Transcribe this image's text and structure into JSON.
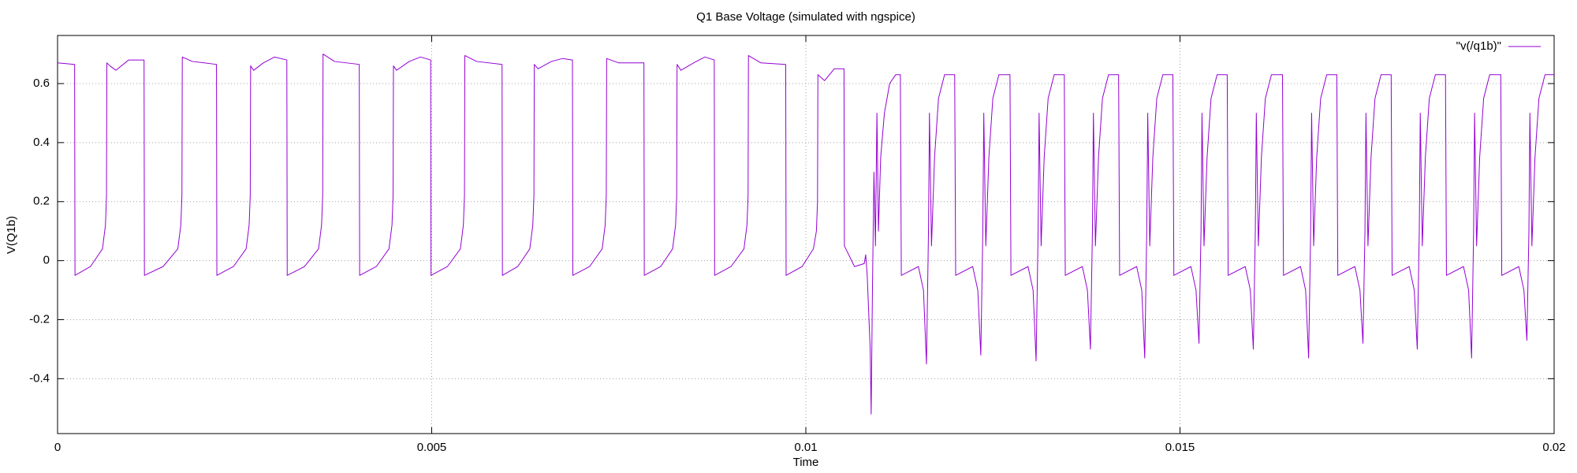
{
  "chart_data": {
    "type": "line",
    "title": "Q1 Base Voltage (simulated with ngspice)",
    "xlabel": "Time",
    "ylabel": "V(Q1b)",
    "xlim": [
      0,
      0.02
    ],
    "xticks": [
      0,
      0.005,
      0.01,
      0.015,
      0.02
    ],
    "ylim": [
      -0.586,
      0.763
    ],
    "yticks": [
      -0.4,
      -0.2,
      0,
      0.2,
      0.4,
      0.6
    ],
    "grid": true,
    "legend": "top right",
    "x": [
      0,
      0.000228,
      0.000233,
      0.00044,
      0.0006,
      0.00064,
      0.000654,
      0.000659,
      0.0007,
      0.00078,
      0.00095,
      0.001156,
      0.001161,
      0.00141,
      0.001607,
      0.001647,
      0.001662,
      0.001667,
      0.0018,
      0.002124,
      0.002129,
      0.00235,
      0.00252,
      0.00256,
      0.002575,
      0.00258,
      0.00262,
      0.00275,
      0.0029,
      0.003064,
      0.003069,
      0.0033,
      0.003488,
      0.003528,
      0.003543,
      0.003548,
      0.0037,
      0.004032,
      0.004037,
      0.00426,
      0.004429,
      0.004469,
      0.004484,
      0.004489,
      0.00453,
      0.0047,
      0.00485,
      0.004986,
      0.004991,
      0.00521,
      0.005383,
      0.005423,
      0.005438,
      0.005443,
      0.0056,
      0.00594,
      0.005945,
      0.00615,
      0.006311,
      0.006351,
      0.006366,
      0.006371,
      0.00642,
      0.0066,
      0.00675,
      0.006881,
      0.006886,
      0.00711,
      0.007278,
      0.007318,
      0.007333,
      0.007338,
      0.0075,
      0.007836,
      0.007841,
      0.00806,
      0.008219,
      0.008259,
      0.008274,
      0.008279,
      0.00833,
      0.0085,
      0.00865,
      0.008776,
      0.008781,
      0.009,
      0.009173,
      0.009213,
      0.009228,
      0.009233,
      0.0094,
      0.009731,
      0.009736,
      0.00995,
      0.010101,
      0.010141,
      0.010156,
      0.010161,
      0.01025,
      0.01038,
      0.01051,
      0.010515,
      0.01065,
      0.01078,
      0.0108,
      0.01082,
      0.01086,
      0.010873,
      0.01089,
      0.01091,
      0.01093,
      0.01095,
      0.01097,
      0.011,
      0.01105,
      0.01112,
      0.0112,
      0.011263,
      0.011276,
      0.011504,
      0.011572,
      0.011612,
      0.011639,
      0.011652,
      0.011679,
      0.01172,
      0.011773,
      0.011854,
      0.011989,
      0.012002,
      0.01223,
      0.012298,
      0.012338,
      0.012365,
      0.012378,
      0.012405,
      0.012446,
      0.012499,
      0.01258,
      0.012728,
      0.012741,
      0.012969,
      0.013037,
      0.013077,
      0.013104,
      0.013117,
      0.013144,
      0.013185,
      0.013238,
      0.013319,
      0.013454,
      0.013467,
      0.013695,
      0.013763,
      0.013803,
      0.01383,
      0.013843,
      0.01387,
      0.013911,
      0.013964,
      0.014045,
      0.01418,
      0.014193,
      0.014421,
      0.014489,
      0.014529,
      0.014556,
      0.014569,
      0.014596,
      0.014637,
      0.01469,
      0.014771,
      0.014905,
      0.014918,
      0.015146,
      0.015214,
      0.015254,
      0.015281,
      0.015294,
      0.015321,
      0.015362,
      0.015415,
      0.015496,
      0.015631,
      0.015644,
      0.015872,
      0.01594,
      0.01598,
      0.016007,
      0.01602,
      0.016047,
      0.016088,
      0.016141,
      0.016222,
      0.01637,
      0.016383,
      0.016611,
      0.016679,
      0.016719,
      0.016746,
      0.016759,
      0.016786,
      0.016827,
      0.01688,
      0.016961,
      0.017096,
      0.017109,
      0.017337,
      0.017405,
      0.017445,
      0.017472,
      0.017485,
      0.017512,
      0.017553,
      0.017606,
      0.017687,
      0.017822,
      0.017835,
      0.018063,
      0.018131,
      0.018171,
      0.018198,
      0.018211,
      0.018238,
      0.018279,
      0.018332,
      0.018413,
      0.018548,
      0.018561,
      0.018789,
      0.018857,
      0.018897,
      0.018924,
      0.018937,
      0.018964,
      0.019005,
      0.019058,
      0.019139,
      0.019287,
      0.0193,
      0.019528,
      0.019596,
      0.019636,
      0.019663,
      0.019676,
      0.019703,
      0.019744,
      0.019797,
      0.019878,
      0.02
    ],
    "series": [
      {
        "name": "\"v(/q1b)\"",
        "color": "#9400d3",
        "values": [
          0.67,
          0.665,
          -0.05,
          -0.02,
          0.04,
          0.12,
          0.22,
          0.67,
          0.66,
          0.645,
          0.68,
          0.68,
          -0.05,
          -0.02,
          0.04,
          0.12,
          0.22,
          0.69,
          0.675,
          0.665,
          -0.05,
          -0.02,
          0.04,
          0.12,
          0.22,
          0.66,
          0.645,
          0.67,
          0.69,
          0.68,
          -0.05,
          -0.02,
          0.04,
          0.12,
          0.22,
          0.7,
          0.675,
          0.665,
          -0.05,
          -0.02,
          0.04,
          0.12,
          0.22,
          0.66,
          0.645,
          0.675,
          0.69,
          0.68,
          -0.05,
          -0.02,
          0.04,
          0.12,
          0.22,
          0.695,
          0.675,
          0.665,
          -0.05,
          -0.02,
          0.04,
          0.12,
          0.22,
          0.665,
          0.65,
          0.675,
          0.685,
          0.68,
          -0.05,
          -0.02,
          0.04,
          0.12,
          0.22,
          0.685,
          0.67,
          0.67,
          -0.05,
          -0.02,
          0.04,
          0.12,
          0.22,
          0.665,
          0.645,
          0.67,
          0.69,
          0.68,
          -0.05,
          -0.02,
          0.04,
          0.12,
          0.22,
          0.695,
          0.67,
          0.665,
          -0.05,
          -0.02,
          0.04,
          0.1,
          0.2,
          0.63,
          0.61,
          0.65,
          0.65,
          0.05,
          -0.02,
          -0.01,
          0.02,
          -0.05,
          -0.3,
          -0.52,
          -0.1,
          0.3,
          0.05,
          0.5,
          0.1,
          0.35,
          0.5,
          0.6,
          0.63,
          0.63,
          -0.05,
          -0.02,
          -0.1,
          -0.35,
          0.1,
          0.5,
          0.05,
          0.35,
          0.55,
          0.63,
          0.63,
          -0.05,
          -0.02,
          -0.1,
          -0.32,
          0.1,
          0.5,
          0.05,
          0.35,
          0.55,
          0.63,
          0.63,
          -0.05,
          -0.02,
          -0.1,
          -0.34,
          0.1,
          0.5,
          0.05,
          0.35,
          0.55,
          0.63,
          0.63,
          -0.05,
          -0.02,
          -0.1,
          -0.3,
          0.1,
          0.5,
          0.05,
          0.35,
          0.55,
          0.63,
          0.63,
          -0.05,
          -0.02,
          -0.1,
          -0.33,
          0.1,
          0.5,
          0.05,
          0.35,
          0.55,
          0.63,
          0.63,
          -0.05,
          -0.02,
          -0.1,
          -0.28,
          0.1,
          0.5,
          0.05,
          0.35,
          0.55,
          0.63,
          0.63,
          -0.05,
          -0.02,
          -0.1,
          -0.3,
          0.1,
          0.5,
          0.05,
          0.35,
          0.55,
          0.63,
          0.63,
          -0.05,
          -0.02,
          -0.1,
          -0.33,
          0.1,
          0.5,
          0.05,
          0.35,
          0.55,
          0.63,
          0.63,
          -0.05,
          -0.02,
          -0.1,
          -0.28,
          0.1,
          0.5,
          0.05,
          0.35,
          0.55,
          0.63,
          0.63,
          -0.05,
          -0.02,
          -0.1,
          -0.3,
          0.1,
          0.5,
          0.05,
          0.35,
          0.55,
          0.63,
          0.63,
          -0.05,
          -0.02,
          -0.1,
          -0.33,
          0.1,
          0.5,
          0.05,
          0.35,
          0.55,
          0.63,
          0.63,
          -0.05,
          -0.02,
          -0.1,
          -0.27,
          0.1,
          0.5,
          0.05,
          0.35,
          0.55,
          0.63,
          0.63
        ]
      }
    ]
  }
}
